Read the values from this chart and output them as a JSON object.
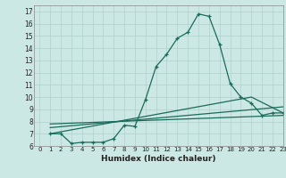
{
  "title": "",
  "xlabel": "Humidex (Indice chaleur)",
  "bg_color": "#cce8e4",
  "grid_color": "#b0d0cc",
  "line_color": "#1a6b5a",
  "xlim": [
    -0.5,
    23
  ],
  "ylim": [
    6,
    17.5
  ],
  "yticks": [
    6,
    7,
    8,
    9,
    10,
    11,
    12,
    13,
    14,
    15,
    16,
    17
  ],
  "xticks": [
    0,
    1,
    2,
    3,
    4,
    5,
    6,
    7,
    8,
    9,
    10,
    11,
    12,
    13,
    14,
    15,
    16,
    17,
    18,
    19,
    20,
    21,
    22,
    23
  ],
  "line1_x": [
    1,
    2,
    3,
    4,
    5,
    6,
    7,
    8,
    9,
    10,
    11,
    12,
    13,
    14,
    15,
    16,
    17,
    18,
    19,
    20,
    21,
    22,
    23
  ],
  "line1_y": [
    7.0,
    7.0,
    6.2,
    6.3,
    6.3,
    6.3,
    6.6,
    7.7,
    7.6,
    9.8,
    12.5,
    13.5,
    14.8,
    15.3,
    16.8,
    16.6,
    14.3,
    11.1,
    10.0,
    9.5,
    8.5,
    8.7,
    8.7
  ],
  "line2_x": [
    1,
    20,
    23
  ],
  "line2_y": [
    7.0,
    10.0,
    8.7
  ],
  "line3_x": [
    1,
    23
  ],
  "line3_y": [
    7.5,
    9.2
  ],
  "line4_x": [
    1,
    23
  ],
  "line4_y": [
    7.8,
    8.5
  ]
}
